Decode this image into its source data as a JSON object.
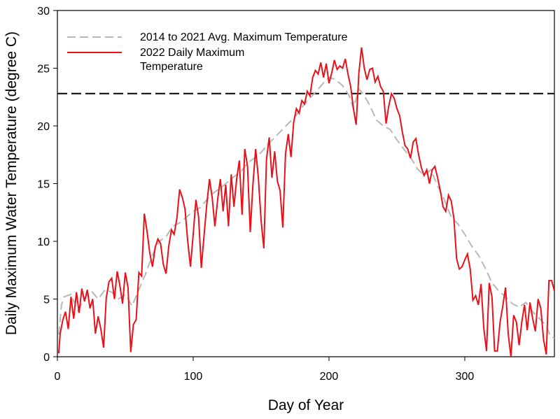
{
  "chart_data": {
    "type": "line",
    "title": "",
    "xlabel": "Day of Year",
    "ylabel": "Daily Maximum Water Temperature (degree C)",
    "xlim": [
      0,
      366
    ],
    "ylim": [
      0,
      30
    ],
    "xticks": [
      0,
      100,
      200,
      300
    ],
    "yticks": [
      0,
      5,
      10,
      15,
      20,
      25,
      30
    ],
    "grid": false,
    "legend_position": "top-left",
    "threshold_line": {
      "y": 22.8,
      "style": "dashed",
      "color": "#000000"
    },
    "series": [
      {
        "name": "2014 to 2021 Avg. Maximum Temperature",
        "color": "#b8b8b8",
        "style": "dashed",
        "points": [
          [
            1,
            1.9
          ],
          [
            3,
            4.5
          ],
          [
            5,
            5.2
          ],
          [
            10,
            5.4
          ],
          [
            15,
            4.0
          ],
          [
            20,
            5.1
          ],
          [
            25,
            5.7
          ],
          [
            30,
            5.0
          ],
          [
            35,
            5.8
          ],
          [
            40,
            5.6
          ],
          [
            45,
            5.0
          ],
          [
            50,
            5.4
          ],
          [
            55,
            4.4
          ],
          [
            60,
            5.8
          ],
          [
            65,
            7.2
          ],
          [
            70,
            8.8
          ],
          [
            75,
            10.0
          ],
          [
            80,
            10.4
          ],
          [
            85,
            11.3
          ],
          [
            90,
            11.6
          ],
          [
            95,
            12.1
          ],
          [
            100,
            12.6
          ],
          [
            105,
            12.9
          ],
          [
            110,
            13.6
          ],
          [
            115,
            14.2
          ],
          [
            120,
            14.6
          ],
          [
            125,
            15.1
          ],
          [
            130,
            15.6
          ],
          [
            135,
            16.0
          ],
          [
            140,
            16.8
          ],
          [
            145,
            17.2
          ],
          [
            150,
            17.7
          ],
          [
            155,
            18.4
          ],
          [
            160,
            19.0
          ],
          [
            165,
            19.6
          ],
          [
            170,
            20.2
          ],
          [
            175,
            20.8
          ],
          [
            180,
            21.6
          ],
          [
            185,
            22.3
          ],
          [
            190,
            22.9
          ],
          [
            195,
            23.6
          ],
          [
            200,
            24.2
          ],
          [
            205,
            24.0
          ],
          [
            210,
            23.5
          ],
          [
            215,
            22.6
          ],
          [
            218,
            21.5
          ],
          [
            222,
            23.2
          ],
          [
            225,
            22.8
          ],
          [
            230,
            21.8
          ],
          [
            235,
            20.5
          ],
          [
            240,
            20.0
          ],
          [
            245,
            19.7
          ],
          [
            250,
            18.8
          ],
          [
            255,
            18.0
          ],
          [
            260,
            17.3
          ],
          [
            265,
            16.3
          ],
          [
            270,
            15.7
          ],
          [
            275,
            16.2
          ],
          [
            280,
            14.8
          ],
          [
            285,
            13.6
          ],
          [
            290,
            12.1
          ],
          [
            295,
            11.5
          ],
          [
            300,
            10.6
          ],
          [
            305,
            9.6
          ],
          [
            310,
            8.8
          ],
          [
            315,
            7.7
          ],
          [
            320,
            6.4
          ],
          [
            325,
            5.7
          ],
          [
            330,
            5.2
          ],
          [
            335,
            4.6
          ],
          [
            340,
            4.3
          ],
          [
            345,
            4.7
          ],
          [
            350,
            3.9
          ],
          [
            355,
            3.3
          ],
          [
            360,
            2.7
          ],
          [
            363,
            1.8
          ],
          [
            366,
            1.6
          ]
        ]
      },
      {
        "name": "2022 Daily Maximum Temperature",
        "color": "#e8111a",
        "style": "solid",
        "points": [
          [
            1,
            0.3
          ],
          [
            2,
            2.0
          ],
          [
            4,
            3.2
          ],
          [
            6,
            3.9
          ],
          [
            8,
            2.4
          ],
          [
            10,
            5.2
          ],
          [
            12,
            3.3
          ],
          [
            14,
            5.6
          ],
          [
            16,
            3.8
          ],
          [
            18,
            5.9
          ],
          [
            20,
            4.8
          ],
          [
            22,
            5.8
          ],
          [
            24,
            4.2
          ],
          [
            26,
            5.0
          ],
          [
            28,
            2.0
          ],
          [
            30,
            3.5
          ],
          [
            32,
            2.4
          ],
          [
            34,
            0.8
          ],
          [
            36,
            5.1
          ],
          [
            38,
            6.5
          ],
          [
            40,
            6.8
          ],
          [
            42,
            5.0
          ],
          [
            44,
            7.4
          ],
          [
            46,
            6.2
          ],
          [
            48,
            4.6
          ],
          [
            50,
            7.3
          ],
          [
            52,
            6.0
          ],
          [
            54,
            0.4
          ],
          [
            56,
            2.8
          ],
          [
            58,
            3.2
          ],
          [
            60,
            7.3
          ],
          [
            62,
            7.0
          ],
          [
            64,
            12.4
          ],
          [
            66,
            10.9
          ],
          [
            68,
            9.0
          ],
          [
            70,
            7.8
          ],
          [
            72,
            9.5
          ],
          [
            74,
            10.2
          ],
          [
            76,
            9.8
          ],
          [
            78,
            8.0
          ],
          [
            80,
            7.2
          ],
          [
            82,
            9.6
          ],
          [
            84,
            11.0
          ],
          [
            86,
            10.6
          ],
          [
            88,
            12.0
          ],
          [
            90,
            14.5
          ],
          [
            92,
            13.8
          ],
          [
            94,
            12.8
          ],
          [
            96,
            10.0
          ],
          [
            98,
            7.8
          ],
          [
            100,
            10.6
          ],
          [
            102,
            13.6
          ],
          [
            104,
            12.1
          ],
          [
            106,
            7.7
          ],
          [
            108,
            10.5
          ],
          [
            110,
            13.2
          ],
          [
            112,
            15.4
          ],
          [
            114,
            13.8
          ],
          [
            116,
            11.3
          ],
          [
            118,
            13.6
          ],
          [
            120,
            15.4
          ],
          [
            122,
            12.6
          ],
          [
            124,
            14.9
          ],
          [
            126,
            11.3
          ],
          [
            128,
            15.8
          ],
          [
            130,
            13.0
          ],
          [
            132,
            15.4
          ],
          [
            134,
            17.0
          ],
          [
            136,
            12.3
          ],
          [
            138,
            18.0
          ],
          [
            140,
            16.5
          ],
          [
            142,
            10.8
          ],
          [
            144,
            14.9
          ],
          [
            146,
            18.0
          ],
          [
            148,
            15.5
          ],
          [
            150,
            11.8
          ],
          [
            152,
            9.4
          ],
          [
            154,
            17.1
          ],
          [
            156,
            19.0
          ],
          [
            158,
            15.5
          ],
          [
            160,
            17.8
          ],
          [
            162,
            15.2
          ],
          [
            164,
            14.4
          ],
          [
            166,
            11.2
          ],
          [
            168,
            17.6
          ],
          [
            170,
            19.3
          ],
          [
            172,
            17.3
          ],
          [
            174,
            20.3
          ],
          [
            176,
            21.5
          ],
          [
            178,
            21.1
          ],
          [
            180,
            22.2
          ],
          [
            182,
            21.9
          ],
          [
            184,
            23.0
          ],
          [
            186,
            22.6
          ],
          [
            188,
            24.2
          ],
          [
            190,
            24.8
          ],
          [
            192,
            24.5
          ],
          [
            194,
            25.5
          ],
          [
            196,
            24.2
          ],
          [
            198,
            25.4
          ],
          [
            200,
            23.7
          ],
          [
            202,
            24.6
          ],
          [
            204,
            25.7
          ],
          [
            206,
            24.9
          ],
          [
            208,
            25.2
          ],
          [
            210,
            25.0
          ],
          [
            212,
            25.8
          ],
          [
            214,
            24.5
          ],
          [
            216,
            23.4
          ],
          [
            218,
            21.5
          ],
          [
            220,
            20.1
          ],
          [
            222,
            24.6
          ],
          [
            224,
            26.8
          ],
          [
            226,
            25.0
          ],
          [
            228,
            24.0
          ],
          [
            230,
            24.9
          ],
          [
            232,
            25.0
          ],
          [
            234,
            23.8
          ],
          [
            236,
            24.3
          ],
          [
            238,
            23.4
          ],
          [
            240,
            23.0
          ],
          [
            242,
            20.2
          ],
          [
            244,
            21.7
          ],
          [
            246,
            22.8
          ],
          [
            248,
            22.4
          ],
          [
            250,
            21.5
          ],
          [
            252,
            20.9
          ],
          [
            254,
            19.5
          ],
          [
            256,
            18.3
          ],
          [
            258,
            18.0
          ],
          [
            260,
            17.2
          ],
          [
            262,
            18.6
          ],
          [
            264,
            18.9
          ],
          [
            266,
            17.5
          ],
          [
            268,
            16.4
          ],
          [
            270,
            15.7
          ],
          [
            272,
            16.2
          ],
          [
            274,
            15.0
          ],
          [
            276,
            16.2
          ],
          [
            278,
            16.5
          ],
          [
            280,
            15.5
          ],
          [
            282,
            14.4
          ],
          [
            284,
            13.0
          ],
          [
            286,
            12.6
          ],
          [
            288,
            14.0
          ],
          [
            290,
            13.5
          ],
          [
            292,
            12.0
          ],
          [
            294,
            8.5
          ],
          [
            296,
            7.6
          ],
          [
            298,
            7.8
          ],
          [
            300,
            8.4
          ],
          [
            302,
            8.9
          ],
          [
            304,
            7.6
          ],
          [
            306,
            4.9
          ],
          [
            308,
            5.3
          ],
          [
            310,
            4.5
          ],
          [
            312,
            6.3
          ],
          [
            314,
            2.5
          ],
          [
            316,
            0.5
          ],
          [
            318,
            6.4
          ],
          [
            320,
            5.2
          ],
          [
            322,
            0.5
          ],
          [
            324,
            0.5
          ],
          [
            326,
            3.0
          ],
          [
            328,
            4.4
          ],
          [
            330,
            6.0
          ],
          [
            332,
            2.0
          ],
          [
            334,
            0.0
          ],
          [
            336,
            3.6
          ],
          [
            338,
            3.0
          ],
          [
            340,
            1.0
          ],
          [
            342,
            3.0
          ],
          [
            344,
            4.5
          ],
          [
            346,
            2.3
          ],
          [
            348,
            4.7
          ],
          [
            350,
            3.3
          ],
          [
            352,
            2.2
          ],
          [
            354,
            5.0
          ],
          [
            356,
            4.2
          ],
          [
            358,
            1.5
          ],
          [
            360,
            0.2
          ],
          [
            362,
            6.6
          ],
          [
            364,
            6.6
          ],
          [
            366,
            5.7
          ]
        ]
      }
    ],
    "legend": {
      "entries": [
        {
          "lines": [
            "2014 to 2021 Avg. Maximum Temperature"
          ]
        },
        {
          "lines": [
            "2022 Daily Maximum",
            "Temperature"
          ]
        }
      ]
    }
  }
}
